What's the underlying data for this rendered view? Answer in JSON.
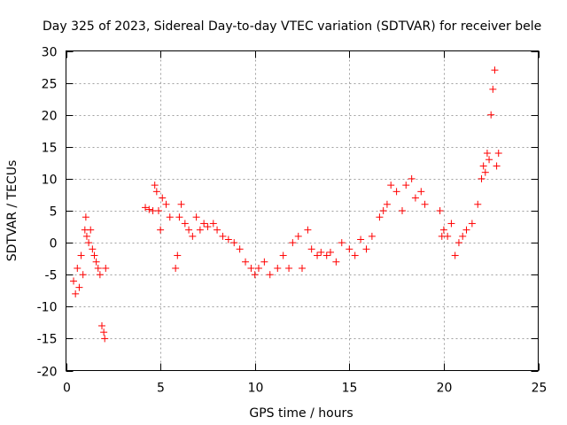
{
  "chart_data": {
    "type": "scatter",
    "title": "Day 325 of 2023, Sidereal Day-to-day VTEC variation (SDTVAR) for receiver bele",
    "xlabel": "GPS time / hours",
    "ylabel": "SDTVAR / TECUs",
    "xlim": [
      0,
      25
    ],
    "ylim": [
      -20,
      30
    ],
    "xticks": [
      "0",
      "5",
      "10",
      "15",
      "20",
      "25"
    ],
    "yticks": [
      "-20",
      "-15",
      "-10",
      "-5",
      "0",
      "5",
      "10",
      "15",
      "20",
      "25",
      "30"
    ],
    "grid": true,
    "marker": "+",
    "color": "#ff0000",
    "series": [
      {
        "name": "SDTVAR",
        "x": [
          0.4,
          0.5,
          0.6,
          0.7,
          0.8,
          0.9,
          1.0,
          1.05,
          1.1,
          1.2,
          1.3,
          1.4,
          1.5,
          1.6,
          1.7,
          1.8,
          1.9,
          2.0,
          2.05,
          2.1,
          4.2,
          4.4,
          4.6,
          4.7,
          4.8,
          4.9,
          5.0,
          5.1,
          5.3,
          5.5,
          5.8,
          5.9,
          6.0,
          6.1,
          6.3,
          6.5,
          6.7,
          6.9,
          7.1,
          7.3,
          7.5,
          7.8,
          8.0,
          8.3,
          8.6,
          8.9,
          9.2,
          9.5,
          9.8,
          10.0,
          10.2,
          10.5,
          10.8,
          11.2,
          11.5,
          11.8,
          12.0,
          12.3,
          12.5,
          12.8,
          13.0,
          13.3,
          13.5,
          13.8,
          14.0,
          14.3,
          14.6,
          15.0,
          15.3,
          15.6,
          15.9,
          16.2,
          16.6,
          16.8,
          17.0,
          17.2,
          17.5,
          17.8,
          18.0,
          18.3,
          18.5,
          18.8,
          19.0,
          19.8,
          19.9,
          20.0,
          20.2,
          20.4,
          20.6,
          20.8,
          21.0,
          21.2,
          21.5,
          21.8,
          22.0,
          22.1,
          22.2,
          22.3,
          22.4,
          22.5,
          22.6,
          22.7,
          22.8,
          22.9
        ],
        "y": [
          -6,
          -8,
          -4,
          -7,
          -2,
          -5,
          2,
          4,
          1,
          0,
          2,
          -1,
          -2,
          -3,
          -4,
          -5,
          -13,
          -14,
          -15,
          -4,
          5.5,
          5.2,
          5,
          9,
          8,
          5,
          2,
          7,
          6,
          4,
          -4,
          -2,
          4,
          6,
          3,
          2,
          1,
          4,
          2,
          3,
          2.5,
          3,
          2,
          1,
          0.5,
          0,
          -1,
          -3,
          -4,
          -5,
          -4,
          -3,
          -5,
          -4,
          -2,
          -4,
          0,
          1,
          -4,
          2,
          -1,
          -2,
          -1.5,
          -2,
          -1.5,
          -3,
          0,
          -1,
          -2,
          0.5,
          -1,
          1,
          4,
          5,
          6,
          9,
          8,
          5,
          9,
          10,
          7,
          8,
          6,
          5,
          1,
          2,
          1,
          3,
          -2,
          0,
          1,
          2,
          3,
          6,
          10,
          12,
          11,
          14,
          13,
          20,
          24,
          27,
          12,
          14
        ]
      }
    ]
  }
}
